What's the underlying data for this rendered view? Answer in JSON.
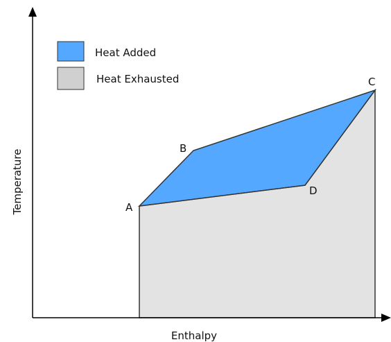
{
  "axes": {
    "x_label": "Enthalpy",
    "y_label": "Temperature"
  },
  "legend": [
    {
      "label": "Heat Added"
    },
    {
      "label": "Heat Exhausted"
    }
  ],
  "points": [
    {
      "label": "A"
    },
    {
      "label": "B"
    },
    {
      "label": "C"
    },
    {
      "label": "D"
    }
  ]
}
